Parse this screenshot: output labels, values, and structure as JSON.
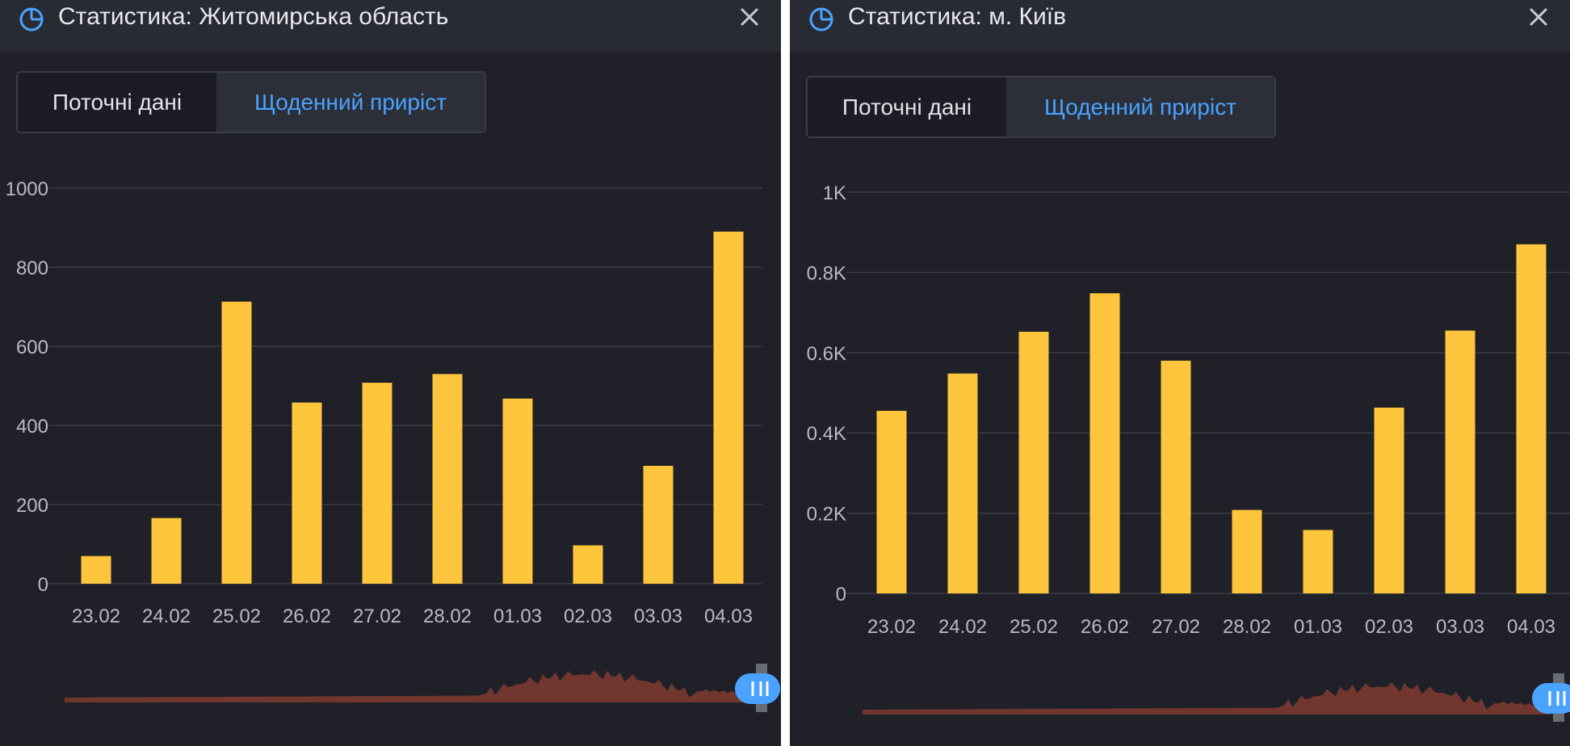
{
  "colors": {
    "background": "#1f2028",
    "header": "#292b33",
    "bar": "#ffc53d",
    "accent": "#4aa3ff",
    "grid": "#3a3c46",
    "tick_text": "#b9bbc4",
    "navigator": "#7a3a30"
  },
  "panels": [
    {
      "id": "left",
      "title": "Статистика: Житомирська область",
      "icon": "pie-chart-icon",
      "close_icon": "close-icon",
      "tabs": {
        "current": "Поточні дані",
        "daily": "Щоденний приріст",
        "active": "daily"
      }
    },
    {
      "id": "right",
      "title": "Статистика: м. Київ",
      "icon": "pie-chart-icon",
      "close_icon": "close-icon",
      "tabs": {
        "current": "Поточні дані",
        "daily": "Щоденний приріст",
        "active": "daily"
      }
    }
  ],
  "chart_data": [
    {
      "type": "bar",
      "title": "Статистика: Житомирська область",
      "categories": [
        "23.02",
        "24.02",
        "25.02",
        "26.02",
        "27.02",
        "28.02",
        "01.03",
        "02.03",
        "03.03",
        "04.03"
      ],
      "values": [
        70,
        166,
        713,
        458,
        508,
        530,
        468,
        97,
        298,
        890
      ],
      "ylim": [
        0,
        1000
      ],
      "yticks": [
        0,
        200,
        400,
        600,
        800,
        1000
      ],
      "ytick_labels": [
        "0",
        "200",
        "400",
        "600",
        "800",
        "1000"
      ],
      "grid": true,
      "legend": "none"
    },
    {
      "type": "bar",
      "title": "Статистика: м. Київ",
      "categories": [
        "23.02",
        "24.02",
        "25.02",
        "26.02",
        "27.02",
        "28.02",
        "01.03",
        "02.03",
        "03.03",
        "04.03"
      ],
      "values": [
        455,
        548,
        652,
        748,
        580,
        208,
        158,
        463,
        655,
        870
      ],
      "ylim": [
        0,
        1000
      ],
      "yticks": [
        0,
        200,
        400,
        600,
        800,
        1000
      ],
      "ytick_labels": [
        "0",
        "0.2K",
        "0.4K",
        "0.6K",
        "0.8K",
        "1K"
      ],
      "grid": true,
      "legend": "none"
    }
  ]
}
